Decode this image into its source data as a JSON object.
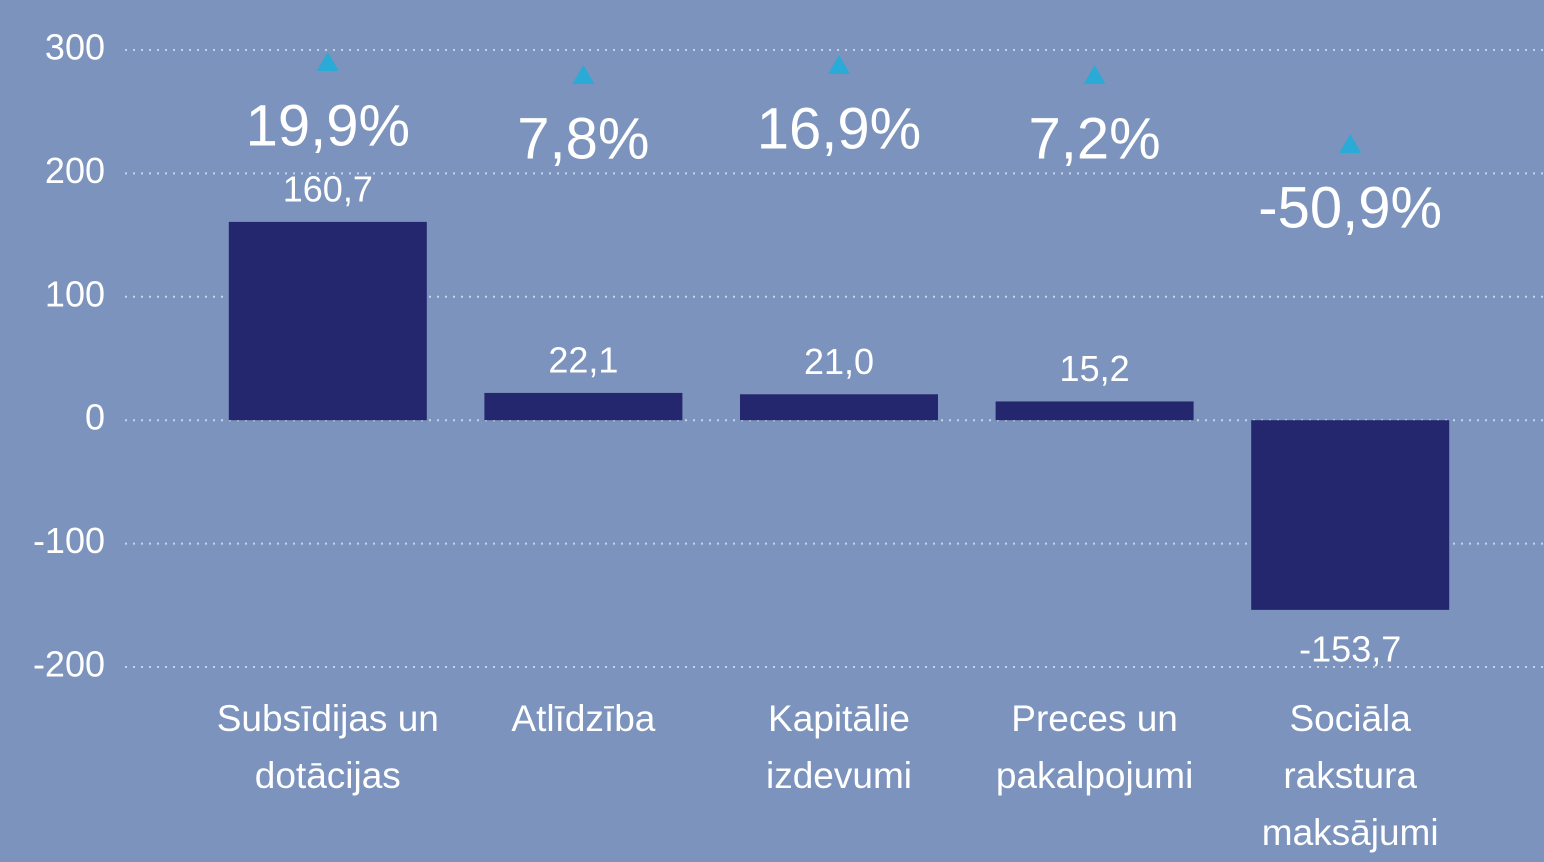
{
  "chart_data": {
    "type": "bar",
    "categories": [
      "Subsīdijas un dotācijas",
      "Atlīdzība",
      "Kapitālie izdevumi",
      "Preces un pakalpojumi",
      "Sociāla rakstura maksājumi"
    ],
    "values": [
      160.7,
      22.1,
      21.0,
      15.2,
      -153.7
    ],
    "value_labels": [
      "160,7",
      "22,1",
      "21,0",
      "15,2",
      "-153,7"
    ],
    "changes": [
      19.9,
      7.8,
      16.9,
      7.2,
      -50.9
    ],
    "change_labels": [
      "19,9%",
      "7,8%",
      "16,9%",
      "7,2%",
      "-50,9%"
    ],
    "color": "#24266e",
    "ylim": [
      -200,
      300
    ],
    "yticks": [
      -200,
      -100,
      0,
      100,
      200,
      300
    ],
    "grid": true
  }
}
